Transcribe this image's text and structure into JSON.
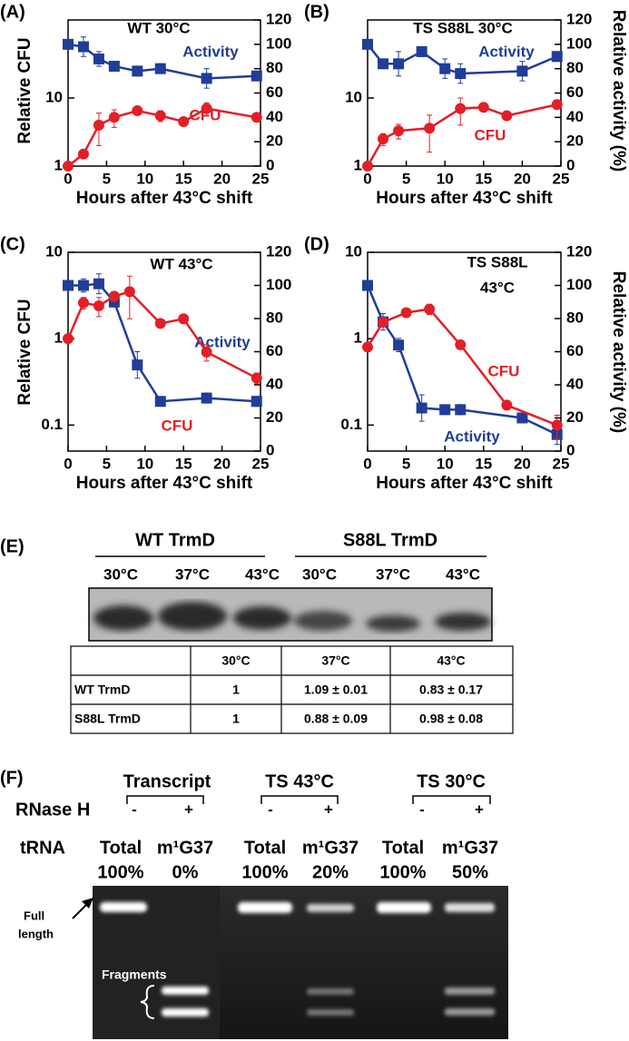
{
  "chart_data": [
    {
      "type": "line",
      "label": "(A)",
      "title": "WT 30°C",
      "x_label": "Hours after 43°C shift",
      "y_label": "Relative CFU",
      "log_y": true,
      "xlim": [
        0,
        25
      ],
      "xticks": [
        0,
        5,
        10,
        15,
        20,
        25
      ],
      "ylim": [
        1,
        140
      ],
      "yticks": [
        1,
        10
      ],
      "y2lim": [
        0,
        120
      ],
      "y2ticks": [
        0,
        20,
        40,
        60,
        80,
        100,
        120
      ],
      "series": [
        {
          "name": "Activity",
          "color": "#1f3d99",
          "marker": "square",
          "axis": "y2",
          "x": [
            0,
            2,
            4,
            6,
            9,
            12,
            18,
            24.5
          ],
          "values": [
            100,
            98,
            88,
            82,
            78,
            80,
            72,
            74
          ],
          "errors": [
            3,
            8,
            6,
            4,
            4,
            4,
            8,
            3
          ]
        },
        {
          "name": "CFU",
          "color": "#e41e26",
          "marker": "circle",
          "x": [
            0,
            2,
            4,
            6,
            9,
            12,
            15,
            18,
            24.5
          ],
          "values": [
            1,
            1.5,
            4,
            5.2,
            6.5,
            5.5,
            4.5,
            7,
            5.2
          ],
          "errors": [
            0,
            0.2,
            2,
            1.5,
            0.5,
            1,
            0.5,
            1.5,
            0.7
          ]
        }
      ]
    },
    {
      "type": "line",
      "label": "(B)",
      "title": "TS S88L 30°C",
      "x_label": "Hours after 43°C shift",
      "y2_label": "Relative activity (%)",
      "log_y": true,
      "xlim": [
        0,
        25
      ],
      "xticks": [
        0,
        5,
        10,
        15,
        20,
        25
      ],
      "ylim": [
        1,
        140
      ],
      "yticks": [
        1,
        10
      ],
      "y2lim": [
        0,
        120
      ],
      "y2ticks": [
        0,
        20,
        40,
        60,
        80,
        100,
        120
      ],
      "series": [
        {
          "name": "Activity",
          "color": "#1f3d99",
          "marker": "square",
          "axis": "y2",
          "x": [
            0,
            2,
            4,
            7,
            10,
            12,
            20,
            24.5
          ],
          "values": [
            100,
            84,
            84,
            94,
            80,
            76,
            78,
            90
          ],
          "errors": [
            3,
            3,
            10,
            4,
            8,
            8,
            8,
            4
          ]
        },
        {
          "name": "CFU",
          "color": "#e41e26",
          "marker": "circle",
          "x": [
            0,
            2,
            4,
            8,
            12,
            15,
            18,
            24.5
          ],
          "values": [
            1,
            2.5,
            3.3,
            3.6,
            7,
            7.3,
            5.5,
            8
          ],
          "errors": [
            0,
            0.5,
            0.8,
            2,
            3,
            0.8,
            0.5,
            1
          ]
        }
      ]
    },
    {
      "type": "line",
      "label": "(C)",
      "title": "WT 43°C",
      "x_label": "Hours after 43°C shift",
      "y_label": "Relative CFU",
      "log_y": true,
      "xlim": [
        0,
        25
      ],
      "xticks": [
        0,
        5,
        10,
        15,
        20,
        25
      ],
      "ylim": [
        0.05,
        10
      ],
      "yticks": [
        0.1,
        1,
        10
      ],
      "y2lim": [
        0,
        120
      ],
      "y2ticks": [
        0,
        20,
        40,
        60,
        80,
        100,
        120
      ],
      "series": [
        {
          "name": "Activity",
          "color": "#1f3d99",
          "marker": "square",
          "axis": "y2",
          "x": [
            0,
            2,
            4,
            6,
            9,
            12,
            18,
            24.5
          ],
          "values": [
            100,
            100,
            101,
            90,
            52,
            30,
            32,
            30
          ],
          "errors": [
            3,
            4,
            6,
            3,
            8,
            2,
            3,
            3
          ]
        },
        {
          "name": "CFU",
          "color": "#e41e26",
          "marker": "circle",
          "x": [
            0,
            2,
            4,
            6,
            8,
            12,
            15,
            18,
            24.5
          ],
          "values": [
            1,
            2.6,
            2.4,
            3.1,
            3.5,
            1.5,
            1.7,
            0.7,
            0.35
          ],
          "errors": [
            0,
            0.4,
            0.6,
            0.4,
            1.8,
            0.1,
            0.2,
            0.15,
            0.05
          ]
        }
      ]
    },
    {
      "type": "line",
      "label": "(D)",
      "title": [
        "TS S88L",
        "43°C"
      ],
      "x_label": "Hours after 43°C shift",
      "y2_label": "Relative activity (%)",
      "log_y": true,
      "xlim": [
        0,
        25
      ],
      "xticks": [
        0,
        5,
        10,
        15,
        20,
        25
      ],
      "ylim": [
        0.05,
        10
      ],
      "yticks": [
        0.1,
        1,
        10
      ],
      "y2lim": [
        0,
        120
      ],
      "y2ticks": [
        0,
        20,
        40,
        60,
        80,
        100,
        120
      ],
      "series": [
        {
          "name": "Activity",
          "color": "#1f3d99",
          "marker": "square",
          "axis": "y2",
          "x": [
            0,
            2,
            4,
            7,
            10,
            12,
            20,
            24.5
          ],
          "values": [
            100,
            78,
            64,
            26,
            25,
            25,
            20,
            10
          ],
          "errors": [
            2,
            5,
            4,
            8,
            2,
            3,
            3,
            6
          ]
        },
        {
          "name": "CFU",
          "color": "#e41e26",
          "marker": "circle",
          "x": [
            0,
            2,
            5,
            8,
            12,
            18,
            24.5
          ],
          "values": [
            0.8,
            1.55,
            2,
            2.2,
            0.85,
            0.17,
            0.1
          ],
          "errors": [
            0,
            0.1,
            0.1,
            0.3,
            0.05,
            0.02,
            0.03
          ]
        }
      ]
    }
  ],
  "panel_e": {
    "label": "(E)",
    "groups": [
      "WT TrmD",
      "S88L TrmD"
    ],
    "lanes": [
      "30°C",
      "37°C",
      "43°C",
      "30°C",
      "37°C",
      "43°C"
    ],
    "table": {
      "header": [
        "30°C",
        "37°C",
        "43°C"
      ],
      "rows": [
        [
          "WT TrmD",
          1,
          "1.09 ± 0.01",
          "0.83 ± 0.17"
        ],
        [
          "S88L TrmD",
          1,
          "0.88 ± 0.09",
          "0.98 ± 0.08"
        ]
      ]
    }
  },
  "panel_f": {
    "label": "(F)",
    "groups": [
      "Transcript",
      "TS 43°C",
      "TS 30°C"
    ],
    "row_label": "RNase H",
    "treatment": [
      "-",
      "+",
      "-",
      "+",
      "-",
      "+"
    ],
    "trna_label": "tRNA",
    "lanes": [
      {
        "type": "Total",
        "percent": "100%"
      },
      {
        "type": "m¹G37",
        "percent": "0%"
      },
      {
        "type": "Total",
        "percent": "100%"
      },
      {
        "type": "m¹G37",
        "percent": "20%"
      },
      {
        "type": "Total",
        "percent": "100%"
      },
      {
        "type": "m¹G37",
        "percent": "50%"
      }
    ],
    "full_length": [
      "Full",
      "length"
    ],
    "fragments": "Fragments"
  }
}
